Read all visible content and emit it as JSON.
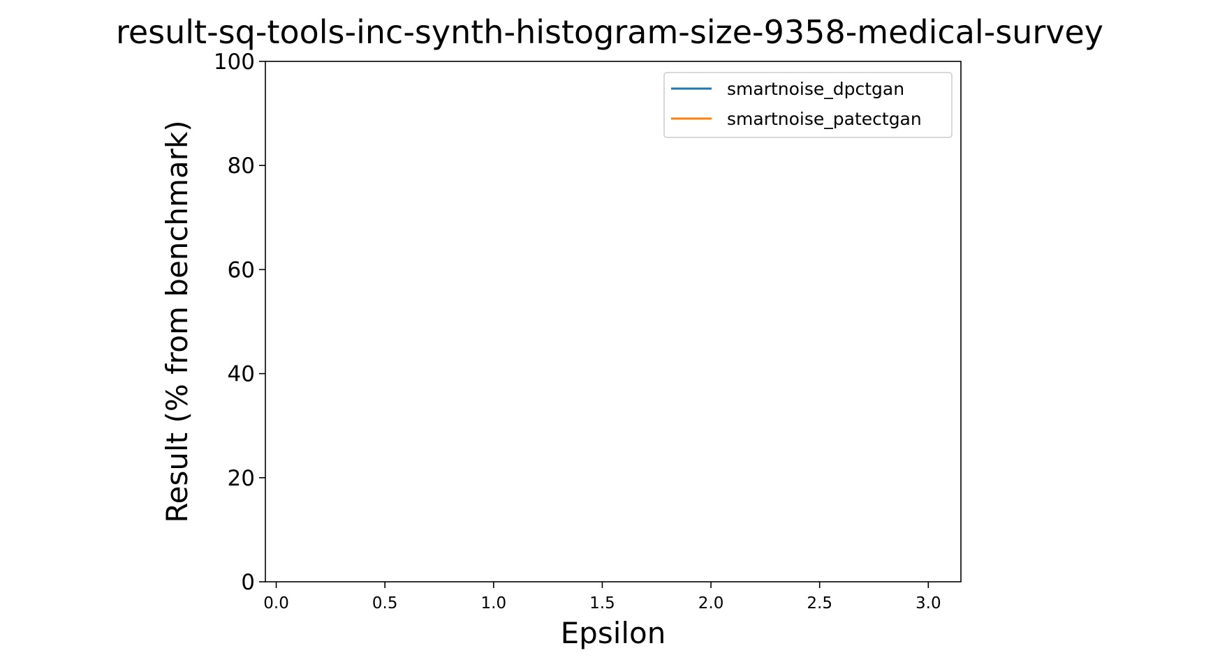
{
  "chart_data": {
    "type": "line",
    "title": "result-sq-tools-inc-synth-histogram-size-9358-medical-survey",
    "xlabel": "Epsilon",
    "ylabel": "Result (% from benchmark)",
    "xlim": [
      -0.05,
      3.15
    ],
    "ylim": [
      0,
      100
    ],
    "xticks": [
      0.0,
      0.5,
      1.0,
      1.5,
      2.0,
      2.5,
      3.0
    ],
    "xtick_labels": [
      "0.0",
      "0.5",
      "1.0",
      "1.5",
      "2.0",
      "2.5",
      "3.0"
    ],
    "yticks": [
      0,
      20,
      40,
      60,
      80,
      100
    ],
    "ytick_labels": [
      "0",
      "20",
      "40",
      "60",
      "80",
      "100"
    ],
    "grid": false,
    "legend_position": "top-right",
    "series": [
      {
        "name": "smartnoise_dpctgan",
        "color": "#1f77b4",
        "x": [],
        "y": []
      },
      {
        "name": "smartnoise_patectgan",
        "color": "#ff7f0e",
        "x": [],
        "y": []
      }
    ]
  }
}
